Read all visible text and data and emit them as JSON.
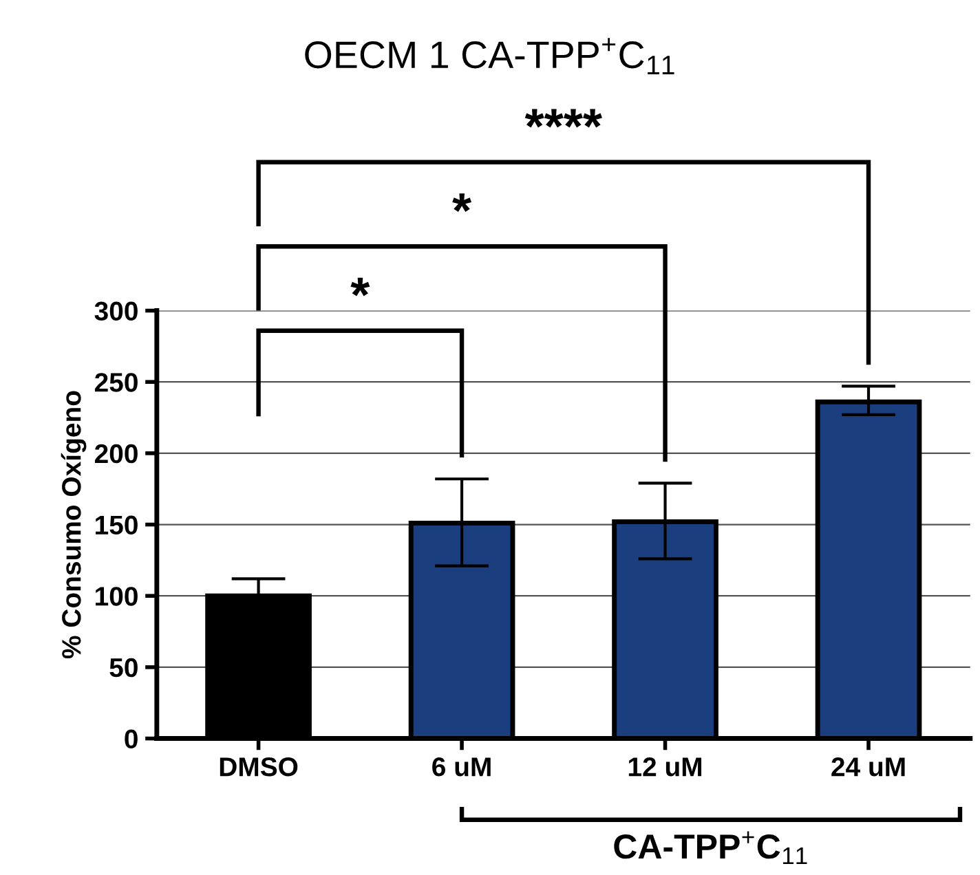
{
  "chart_data": {
    "type": "bar",
    "title": "OECM 1 CA-TPP$^{+}$C$_{11}$",
    "ylabel": "% Consumo Oxígeno",
    "categories": [
      "DMSO",
      "6 uM",
      "12 uM",
      "24 uM"
    ],
    "values": [
      100,
      151,
      152,
      236
    ],
    "errors": [
      12,
      [
        121,
        182
      ],
      [
        126,
        179
      ],
      [
        227,
        247
      ]
    ],
    "colors": [
      "#000000",
      "#1b3f7e",
      "#1b3f7e",
      "#1b3f7e"
    ],
    "ylim": [
      0,
      300
    ],
    "yticks": [
      0,
      50,
      100,
      150,
      200,
      250,
      300
    ],
    "grid": "y",
    "legend": false,
    "annotations": [
      "*",
      "*",
      "****",
      "CA-TPP$^{+}$C$_{11}$"
    ]
  }
}
